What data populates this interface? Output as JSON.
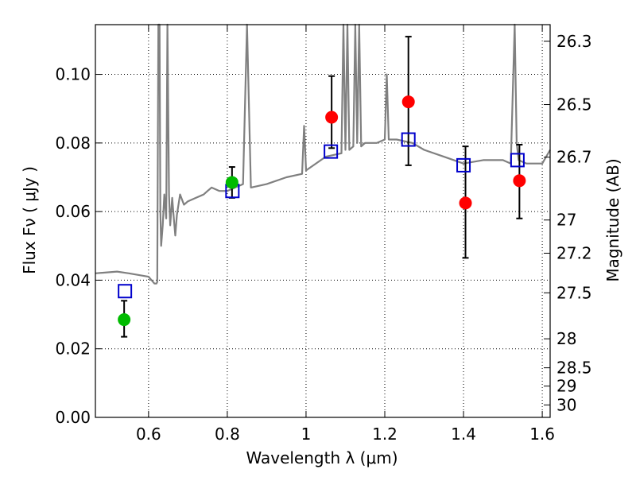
{
  "chart_data": {
    "type": "scatter",
    "title": "",
    "xlabel": "Wavelength  λ (μm)",
    "ylabel": "Flux  Fν  ( μJy )",
    "ylabel_right": "Magnitude (AB)",
    "xlim": [
      0.465,
      1.62
    ],
    "ylim": [
      0.0,
      0.1145
    ],
    "x_ticks": [
      0.6,
      0.8,
      1.0,
      1.2,
      1.4,
      1.6
    ],
    "x_tick_labels": [
      "0.6",
      "0.8",
      "1",
      "1.2",
      "1.4",
      "1.6"
    ],
    "y_ticks": [
      0.0,
      0.02,
      0.04,
      0.06,
      0.08,
      0.1
    ],
    "y_tick_labels": [
      "0.00",
      "0.02",
      "0.04",
      "0.06",
      "0.08",
      "0.10"
    ],
    "mag_ticks": [
      26.3,
      26.5,
      26.7,
      27,
      27.2,
      27.5,
      28,
      28.5,
      29,
      30
    ],
    "mag_tick_labels": [
      "26.3",
      "26.5",
      "26.7",
      "27",
      "27.2",
      "27.5",
      "28",
      "28.5",
      "29",
      "30"
    ],
    "grid": true,
    "colors": {
      "spectrum": "#808080",
      "observed_green": "#00bb00",
      "observed_red": "#ff0000",
      "model": "#0000cc",
      "errorbar": "#000000"
    },
    "series": [
      {
        "name": "model spectrum",
        "kind": "line",
        "x": [
          0.465,
          0.52,
          0.55,
          0.6,
          0.615,
          0.62,
          0.622,
          0.625,
          0.628,
          0.63,
          0.632,
          0.636,
          0.64,
          0.645,
          0.648,
          0.652,
          0.655,
          0.66,
          0.665,
          0.668,
          0.672,
          0.68,
          0.69,
          0.7,
          0.72,
          0.74,
          0.75,
          0.76,
          0.78,
          0.8,
          0.82,
          0.84,
          0.85,
          0.86,
          0.9,
          0.95,
          0.99,
          0.995,
          1.0,
          1.05,
          1.09,
          1.095,
          1.1,
          1.105,
          1.11,
          1.12,
          1.125,
          1.13,
          1.135,
          1.14,
          1.15,
          1.18,
          1.2,
          1.205,
          1.21,
          1.23,
          1.27,
          1.3,
          1.35,
          1.4,
          1.45,
          1.5,
          1.52,
          1.53,
          1.535,
          1.54,
          1.56,
          1.6,
          1.62
        ],
        "y": [
          0.042,
          0.0425,
          0.042,
          0.041,
          0.039,
          0.039,
          0.0395,
          0.1145,
          0.1145,
          0.06,
          0.05,
          0.056,
          0.065,
          0.058,
          0.1145,
          0.065,
          0.056,
          0.064,
          0.057,
          0.053,
          0.059,
          0.065,
          0.062,
          0.063,
          0.064,
          0.065,
          0.066,
          0.067,
          0.066,
          0.066,
          0.067,
          0.068,
          0.1145,
          0.067,
          0.068,
          0.07,
          0.071,
          0.085,
          0.072,
          0.076,
          0.077,
          0.1145,
          0.078,
          0.1145,
          0.078,
          0.079,
          0.1145,
          0.08,
          0.1145,
          0.079,
          0.08,
          0.08,
          0.081,
          0.1,
          0.081,
          0.081,
          0.08,
          0.078,
          0.076,
          0.074,
          0.075,
          0.075,
          0.074,
          0.1145,
          0.08,
          0.075,
          0.074,
          0.074,
          0.078
        ]
      },
      {
        "name": "observed photometry",
        "kind": "points",
        "points": [
          {
            "x": 0.538,
            "y": 0.0285,
            "yerr": [
              0.0235,
              0.034
            ],
            "color": "green"
          },
          {
            "x": 0.812,
            "y": 0.0685,
            "yerr": [
              0.064,
              0.073
            ],
            "color": "green"
          },
          {
            "x": 1.065,
            "y": 0.0875,
            "yerr": [
              0.0785,
              0.0995
            ],
            "color": "red"
          },
          {
            "x": 1.26,
            "y": 0.092,
            "yerr": [
              0.0735,
              0.111
            ],
            "color": "red"
          },
          {
            "x": 1.405,
            "y": 0.0625,
            "yerr": [
              0.0465,
              0.079
            ],
            "color": "red"
          },
          {
            "x": 1.542,
            "y": 0.069,
            "yerr": [
              0.058,
              0.0795
            ],
            "color": "red"
          }
        ]
      },
      {
        "name": "model photometry",
        "kind": "squares",
        "points": [
          {
            "x": 0.54,
            "y": 0.0368
          },
          {
            "x": 0.813,
            "y": 0.066
          },
          {
            "x": 1.063,
            "y": 0.0775
          },
          {
            "x": 1.26,
            "y": 0.081
          },
          {
            "x": 1.4,
            "y": 0.0735
          },
          {
            "x": 1.537,
            "y": 0.075
          }
        ]
      }
    ]
  }
}
